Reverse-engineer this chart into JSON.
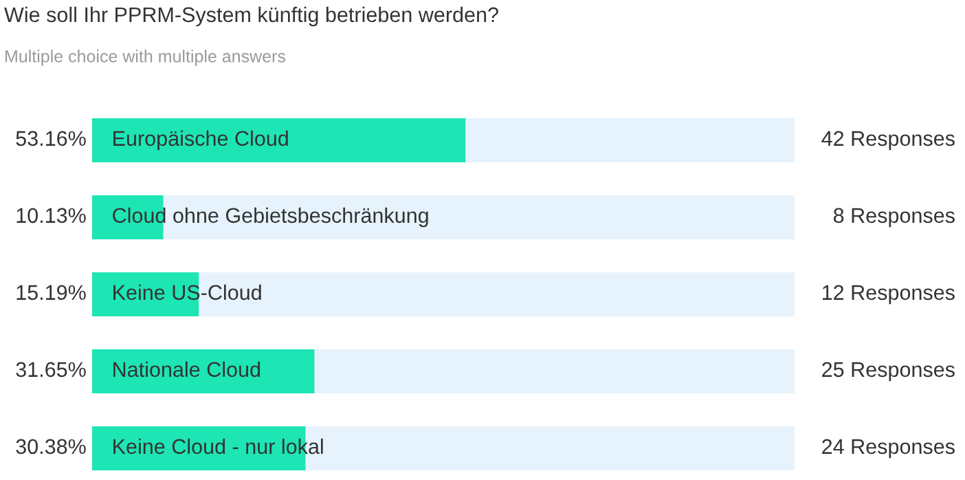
{
  "chart_data": {
    "type": "bar",
    "orientation": "horizontal",
    "title": "Wie soll Ihr PPRM-System künftig betrieben werden?",
    "subtitle": "Multiple choice with multiple answers",
    "categories": [
      "Europäische Cloud",
      "Cloud ohne Gebietsbeschränkung",
      "Keine US-Cloud",
      "Nationale Cloud",
      "Keine Cloud - nur lokal"
    ],
    "values": [
      53.16,
      10.13,
      15.19,
      31.65,
      30.38
    ],
    "value_labels": [
      "53.16%",
      "10.13%",
      "15.19%",
      "31.65%",
      "30.38%"
    ],
    "color": "#1de5b4",
    "xlim": [
      0,
      100
    ],
    "annotations": [
      "42 Responses",
      "8 Responses",
      "12 Responses",
      "25 Responses",
      "24 Responses"
    ]
  }
}
